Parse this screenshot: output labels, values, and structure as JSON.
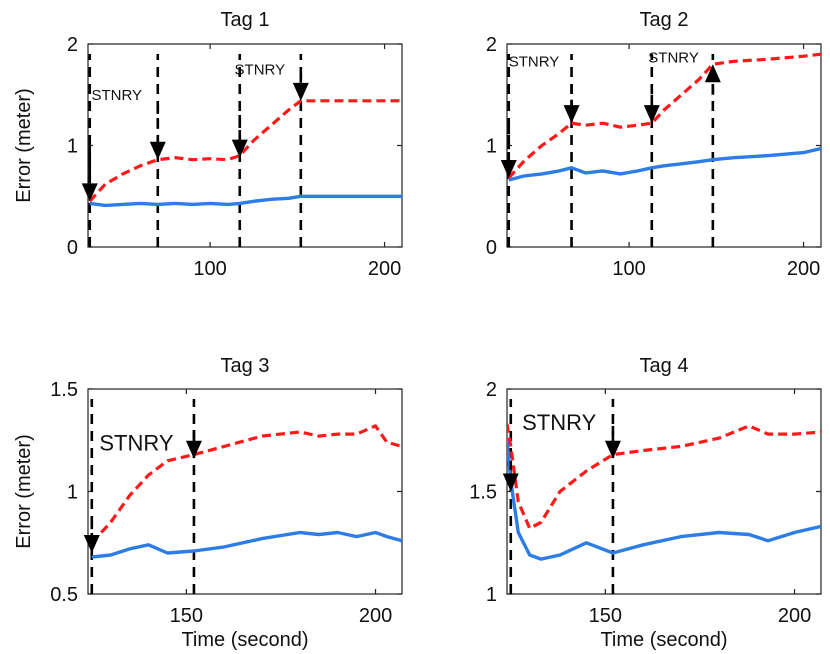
{
  "chart_data": [
    {
      "type": "line",
      "title": "Tag 1",
      "xlabel": "",
      "ylabel": "Error (meter)",
      "xlim": [
        30,
        210
      ],
      "ylim": [
        0,
        2
      ],
      "xticks": [
        100,
        200
      ],
      "xtick_labels": [
        "100",
        "200"
      ],
      "yticks": [
        0,
        1,
        2
      ],
      "ytick_labels": [
        "0",
        "1",
        "2"
      ],
      "series": [
        {
          "name": "dashed-red",
          "color": "#ff1a1a",
          "style": "dashed",
          "x": [
            31,
            40,
            50,
            60,
            70,
            80,
            90,
            100,
            110,
            117,
            125,
            135,
            145,
            152,
            160,
            180,
            210
          ],
          "y": [
            0.45,
            0.62,
            0.72,
            0.8,
            0.86,
            0.88,
            0.86,
            0.87,
            0.86,
            0.9,
            1.05,
            1.2,
            1.35,
            1.44,
            1.44,
            1.44,
            1.44
          ]
        },
        {
          "name": "solid-blue",
          "color": "#2e7de6",
          "style": "solid",
          "x": [
            31,
            40,
            50,
            60,
            70,
            80,
            90,
            100,
            110,
            117,
            125,
            135,
            145,
            152,
            160,
            180,
            210
          ],
          "y": [
            0.43,
            0.41,
            0.42,
            0.43,
            0.42,
            0.43,
            0.42,
            0.43,
            0.42,
            0.43,
            0.45,
            0.47,
            0.48,
            0.5,
            0.5,
            0.5,
            0.5
          ]
        }
      ],
      "vlines": [
        31,
        70,
        117,
        152
      ],
      "arrows": [
        {
          "x": 31,
          "y_start": 1.0,
          "y_end": 0.45
        },
        {
          "x": 70,
          "y_start": 1.4,
          "y_end": 0.86
        },
        {
          "x": 117,
          "y_start": 1.3,
          "y_end": 0.88
        },
        {
          "x": 152,
          "y_start": 1.7,
          "y_end": 1.44
        }
      ],
      "annotations": [
        {
          "text": "STNRY",
          "x": 32,
          "y": 1.45,
          "size": "small"
        },
        {
          "text": "STNRY",
          "x": 114,
          "y": 1.7,
          "size": "small"
        }
      ]
    },
    {
      "type": "line",
      "title": "Tag 2",
      "xlabel": "",
      "ylabel": "",
      "xlim": [
        30,
        210
      ],
      "ylim": [
        0,
        2
      ],
      "xticks": [
        100,
        200
      ],
      "xtick_labels": [
        "100",
        "200"
      ],
      "yticks": [
        0,
        1,
        2
      ],
      "ytick_labels": [
        "0",
        "1",
        "2"
      ],
      "series": [
        {
          "name": "dashed-red",
          "color": "#ff1a1a",
          "style": "dashed",
          "x": [
            31,
            40,
            50,
            60,
            67,
            75,
            85,
            95,
            105,
            113,
            120,
            130,
            140,
            148,
            160,
            180,
            200,
            210
          ],
          "y": [
            0.68,
            0.85,
            1.0,
            1.12,
            1.22,
            1.2,
            1.22,
            1.18,
            1.2,
            1.22,
            1.35,
            1.5,
            1.65,
            1.8,
            1.83,
            1.85,
            1.88,
            1.9
          ]
        },
        {
          "name": "solid-blue",
          "color": "#2e7de6",
          "style": "solid",
          "x": [
            31,
            40,
            50,
            60,
            67,
            75,
            85,
            95,
            105,
            113,
            120,
            130,
            140,
            148,
            160,
            180,
            200,
            210
          ],
          "y": [
            0.66,
            0.7,
            0.72,
            0.75,
            0.78,
            0.73,
            0.75,
            0.72,
            0.75,
            0.78,
            0.8,
            0.82,
            0.84,
            0.86,
            0.88,
            0.9,
            0.93,
            0.97
          ]
        }
      ],
      "vlines": [
        31,
        67,
        113,
        148
      ],
      "arrows": [
        {
          "x": 31,
          "y_start": 1.2,
          "y_end": 0.68
        },
        {
          "x": 67,
          "y_start": 1.6,
          "y_end": 1.22
        },
        {
          "x": 113,
          "y_start": 1.5,
          "y_end": 1.22
        },
        {
          "x": 148,
          "y_start": 1.5,
          "y_end": 1.8
        }
      ],
      "annotations": [
        {
          "text": "STNRY",
          "x": 31,
          "y": 1.78,
          "size": "small"
        },
        {
          "text": "STNRY",
          "x": 111,
          "y": 1.82,
          "size": "small"
        }
      ]
    },
    {
      "type": "line",
      "title": "Tag 3",
      "xlabel": "Time (second)",
      "ylabel": "Error (meter)",
      "xlim": [
        124,
        207
      ],
      "ylim": [
        0.5,
        1.5
      ],
      "xticks": [
        150,
        200
      ],
      "xtick_labels": [
        "150",
        "200"
      ],
      "yticks": [
        0.5,
        1,
        1.5
      ],
      "ytick_labels": [
        "0.5",
        "1",
        "1.5"
      ],
      "series": [
        {
          "name": "dashed-red",
          "color": "#ff1a1a",
          "style": "dashed",
          "x": [
            125,
            130,
            135,
            140,
            145,
            152,
            160,
            170,
            180,
            185,
            190,
            195,
            200,
            203,
            207
          ],
          "y": [
            0.75,
            0.85,
            0.98,
            1.08,
            1.15,
            1.18,
            1.22,
            1.27,
            1.29,
            1.27,
            1.28,
            1.28,
            1.32,
            1.24,
            1.22
          ]
        },
        {
          "name": "solid-blue",
          "color": "#2e7de6",
          "style": "solid",
          "x": [
            125,
            130,
            135,
            140,
            145,
            152,
            160,
            170,
            180,
            185,
            190,
            195,
            200,
            203,
            207
          ],
          "y": [
            0.68,
            0.69,
            0.72,
            0.74,
            0.7,
            0.71,
            0.73,
            0.77,
            0.8,
            0.79,
            0.8,
            0.78,
            0.8,
            0.78,
            0.76
          ]
        }
      ],
      "vlines": [
        125,
        152
      ],
      "arrows": [
        {
          "x": 125,
          "y_start": 0.86,
          "y_end": 0.7
        },
        {
          "x": 152,
          "y_start": 1.3,
          "y_end": 1.16
        }
      ],
      "annotations": [
        {
          "text": "STNRY",
          "x": 127,
          "y": 1.2,
          "size": "large"
        }
      ]
    },
    {
      "type": "line",
      "title": "Tag 4",
      "xlabel": "Time (second)",
      "ylabel": "",
      "xlim": [
        124,
        207
      ],
      "ylim": [
        1,
        2
      ],
      "xticks": [
        150,
        200
      ],
      "xtick_labels": [
        "150",
        "200"
      ],
      "yticks": [
        1,
        1.5,
        2
      ],
      "ytick_labels": [
        "1",
        "1.5",
        "2"
      ],
      "series": [
        {
          "name": "dashed-red",
          "color": "#ff1a1a",
          "style": "dashed",
          "x": [
            124,
            125,
            127,
            130,
            133,
            138,
            145,
            152,
            160,
            170,
            180,
            188,
            193,
            200,
            207
          ],
          "y": [
            1.83,
            1.72,
            1.45,
            1.32,
            1.35,
            1.5,
            1.6,
            1.68,
            1.7,
            1.72,
            1.76,
            1.82,
            1.78,
            1.78,
            1.79
          ]
        },
        {
          "name": "solid-blue",
          "color": "#2e7de6",
          "style": "solid",
          "x": [
            124,
            125,
            127,
            130,
            133,
            138,
            145,
            152,
            160,
            170,
            180,
            188,
            193,
            200,
            207
          ],
          "y": [
            1.75,
            1.55,
            1.3,
            1.19,
            1.17,
            1.19,
            1.25,
            1.2,
            1.24,
            1.28,
            1.3,
            1.29,
            1.26,
            1.3,
            1.33
          ]
        }
      ],
      "vlines": [
        125,
        152
      ],
      "arrows": [
        {
          "x": 125,
          "y_start": 1.65,
          "y_end": 1.5
        },
        {
          "x": 152,
          "y_start": 1.82,
          "y_end": 1.66
        }
      ],
      "annotations": [
        {
          "text": "STNRY",
          "x": 128,
          "y": 1.8,
          "size": "large"
        }
      ]
    }
  ]
}
